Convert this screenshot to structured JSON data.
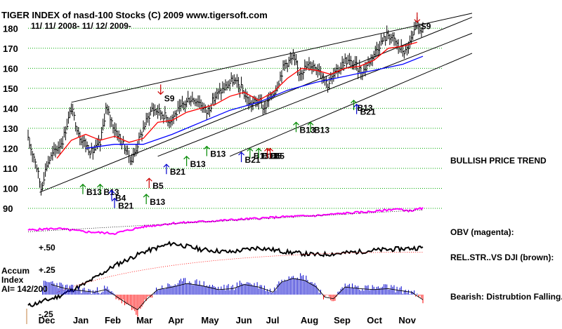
{
  "header": {
    "title": "TIGER INDEX of nasd-100 Stocks  (C) 2009  www.tigersoft.com",
    "date_range": "11/ 11/ 2008- 11/ 12/ 2009-"
  },
  "side_notes": {
    "trend": "BULLISH PRICE TREND",
    "obv": "OBV (magenta):",
    "relstr": "REL.STR..VS DJI (brown):",
    "accum": "Bearish: Distrubtion Falling."
  },
  "accum_label": {
    "line1": "Accum",
    "line2": "Index",
    "line3": "AI= 142/200"
  },
  "colors": {
    "price": "#000000",
    "ma_short": "#ff0000",
    "ma_long": "#0000ff",
    "obv": "#ff00ff",
    "relstr": "#000000",
    "accum_pos": "#0000cc",
    "accum_neg": "#ff0000",
    "grid": "#00aa00",
    "buy": "#008800",
    "buy_blue": "#0000cc",
    "buy_red": "#cc0000"
  },
  "chart_data": {
    "type": "line",
    "title": "TIGER INDEX of nasd-100 Stocks  (C) 2009  www.tigersoft.com",
    "xlabel": "",
    "ylabel": "",
    "ylim": [
      90,
      185
    ],
    "yticks": [
      "180",
      "170",
      "160",
      "150",
      "140",
      "130",
      "120",
      "110",
      "100",
      "90"
    ],
    "months": [
      "Dec",
      "Jan",
      "Feb",
      "Mar",
      "Apr",
      "May",
      "Jun",
      "Jul",
      "Aug",
      "Sep",
      "Oct",
      "Nov"
    ],
    "month_index": [
      12,
      36,
      58,
      80,
      102,
      125,
      149,
      170,
      194,
      217,
      240,
      262
    ],
    "x_count": 275,
    "price_keypoints": [
      [
        0,
        124
      ],
      [
        5,
        114
      ],
      [
        9,
        100
      ],
      [
        13,
        112
      ],
      [
        18,
        118
      ],
      [
        24,
        124
      ],
      [
        30,
        140
      ],
      [
        36,
        126
      ],
      [
        44,
        118
      ],
      [
        50,
        122
      ],
      [
        54,
        140
      ],
      [
        60,
        130
      ],
      [
        66,
        122
      ],
      [
        72,
        114
      ],
      [
        76,
        122
      ],
      [
        80,
        130
      ],
      [
        86,
        140
      ],
      [
        92,
        138
      ],
      [
        98,
        134
      ],
      [
        106,
        140
      ],
      [
        112,
        145
      ],
      [
        118,
        144
      ],
      [
        124,
        138
      ],
      [
        130,
        146
      ],
      [
        136,
        150
      ],
      [
        142,
        154
      ],
      [
        148,
        150
      ],
      [
        154,
        142
      ],
      [
        160,
        144
      ],
      [
        164,
        140
      ],
      [
        172,
        150
      ],
      [
        178,
        162
      ],
      [
        184,
        165
      ],
      [
        188,
        158
      ],
      [
        196,
        162
      ],
      [
        202,
        160
      ],
      [
        208,
        152
      ],
      [
        214,
        158
      ],
      [
        220,
        164
      ],
      [
        226,
        162
      ],
      [
        232,
        158
      ],
      [
        238,
        165
      ],
      [
        244,
        172
      ],
      [
        250,
        177
      ],
      [
        254,
        174
      ],
      [
        258,
        170
      ],
      [
        262,
        168
      ],
      [
        266,
        174
      ],
      [
        270,
        181
      ],
      [
        274,
        179
      ]
    ],
    "ma_short_keypoints": [
      [
        20,
        115
      ],
      [
        30,
        124
      ],
      [
        40,
        127
      ],
      [
        50,
        124
      ],
      [
        60,
        126
      ],
      [
        70,
        123
      ],
      [
        80,
        125
      ],
      [
        90,
        133
      ],
      [
        100,
        134
      ],
      [
        110,
        138
      ],
      [
        120,
        140
      ],
      [
        130,
        142
      ],
      [
        140,
        146
      ],
      [
        150,
        148
      ],
      [
        160,
        144
      ],
      [
        170,
        148
      ],
      [
        180,
        155
      ],
      [
        190,
        160
      ],
      [
        200,
        159
      ],
      [
        210,
        157
      ],
      [
        220,
        160
      ],
      [
        230,
        161
      ],
      [
        240,
        164
      ],
      [
        250,
        170
      ],
      [
        260,
        171
      ],
      [
        270,
        173
      ]
    ],
    "ma_long_keypoints": [
      [
        40,
        120
      ],
      [
        60,
        122
      ],
      [
        80,
        122
      ],
      [
        100,
        127
      ],
      [
        120,
        133
      ],
      [
        140,
        139
      ],
      [
        160,
        143
      ],
      [
        180,
        149
      ],
      [
        200,
        153
      ],
      [
        220,
        156
      ],
      [
        240,
        159
      ],
      [
        260,
        162
      ],
      [
        274,
        166
      ]
    ],
    "trendlines": [
      [
        [
          8,
          98
        ],
        [
          274,
          182
        ]
      ],
      [
        [
          30,
          143
        ],
        [
          274,
          184
        ]
      ],
      [
        [
          90,
          116
        ],
        [
          274,
          174
        ]
      ],
      [
        [
          140,
          116
        ],
        [
          274,
          164
        ]
      ]
    ],
    "obv_keypoints": [
      [
        0,
        0.25
      ],
      [
        20,
        0.3
      ],
      [
        40,
        0.2
      ],
      [
        60,
        0.15
      ],
      [
        80,
        0.35
      ],
      [
        100,
        0.45
      ],
      [
        120,
        0.5
      ],
      [
        140,
        0.55
      ],
      [
        160,
        0.6
      ],
      [
        180,
        0.65
      ],
      [
        200,
        0.68
      ],
      [
        220,
        0.75
      ],
      [
        240,
        0.8
      ],
      [
        255,
        0.88
      ],
      [
        265,
        0.82
      ],
      [
        274,
        0.9
      ]
    ],
    "relstr_keypoints": [
      [
        0,
        -0.15
      ],
      [
        20,
        -0.05
      ],
      [
        40,
        0.1
      ],
      [
        60,
        0.3
      ],
      [
        80,
        0.45
      ],
      [
        100,
        0.55
      ],
      [
        120,
        0.48
      ],
      [
        140,
        0.45
      ],
      [
        160,
        0.5
      ],
      [
        180,
        0.45
      ],
      [
        200,
        0.42
      ],
      [
        220,
        0.44
      ],
      [
        240,
        0.47
      ],
      [
        274,
        0.5
      ]
    ],
    "relstr_labels": [
      "+.50",
      "+.25"
    ],
    "accum_keypoints": [
      [
        0,
        0.1
      ],
      [
        8,
        0.15
      ],
      [
        16,
        0.2
      ],
      [
        26,
        0.12
      ],
      [
        36,
        0.08
      ],
      [
        46,
        0.05
      ],
      [
        54,
        0.1
      ],
      [
        62,
        -0.05
      ],
      [
        70,
        -0.2
      ],
      [
        76,
        -0.3
      ],
      [
        82,
        -0.1
      ],
      [
        90,
        0.1
      ],
      [
        100,
        0.15
      ],
      [
        110,
        0.22
      ],
      [
        120,
        0.18
      ],
      [
        132,
        0.1
      ],
      [
        142,
        0.12
      ],
      [
        150,
        0.2
      ],
      [
        160,
        0.15
      ],
      [
        170,
        0.05
      ],
      [
        176,
        0.25
      ],
      [
        184,
        0.32
      ],
      [
        192,
        0.28
      ],
      [
        200,
        0.15
      ],
      [
        206,
        -0.05
      ],
      [
        212,
        -0.08
      ],
      [
        220,
        0.15
      ],
      [
        230,
        0.12
      ],
      [
        240,
        0.1
      ],
      [
        250,
        0.12
      ],
      [
        258,
        0.08
      ],
      [
        266,
        0.05
      ],
      [
        274,
        -0.1
      ]
    ],
    "accum_label": "-.25",
    "signals": [
      {
        "label": "S9",
        "dir": "down",
        "x": 92,
        "price": 147
      },
      {
        "label": "S9",
        "dir": "down",
        "x": 270,
        "price": 183
      },
      {
        "label": "B13",
        "dir": "up",
        "x": 38,
        "price": 102
      },
      {
        "label": "B13",
        "dir": "up",
        "x": 50,
        "price": 102
      },
      {
        "label": "B4",
        "dir": "up",
        "x": 58,
        "price": 99
      },
      {
        "label": "B21",
        "dir": "up",
        "x": 60,
        "price": 95
      },
      {
        "label": "B13",
        "dir": "up",
        "x": 82,
        "price": 97
      },
      {
        "label": "B5",
        "dir": "up",
        "x": 84,
        "price": 105
      },
      {
        "label": "B21",
        "dir": "up",
        "x": 96,
        "price": 112
      },
      {
        "label": "B13",
        "dir": "up",
        "x": 110,
        "price": 116
      },
      {
        "label": "B13",
        "dir": "up",
        "x": 124,
        "price": 121
      },
      {
        "label": "B21",
        "dir": "up",
        "x": 148,
        "price": 118
      },
      {
        "label": "B13",
        "dir": "up",
        "x": 154,
        "price": 120
      },
      {
        "label": "B13",
        "dir": "up",
        "x": 160,
        "price": 120
      },
      {
        "label": "B5",
        "dir": "up",
        "x": 166,
        "price": 120
      },
      {
        "label": "B5",
        "dir": "up",
        "x": 168,
        "price": 120
      },
      {
        "label": "B13",
        "dir": "up",
        "x": 186,
        "price": 133
      },
      {
        "label": "B13",
        "dir": "up",
        "x": 196,
        "price": 133
      },
      {
        "label": "B13",
        "dir": "up",
        "x": 226,
        "price": 144
      },
      {
        "label": "B21",
        "dir": "up",
        "x": 228,
        "price": 142
      }
    ]
  }
}
